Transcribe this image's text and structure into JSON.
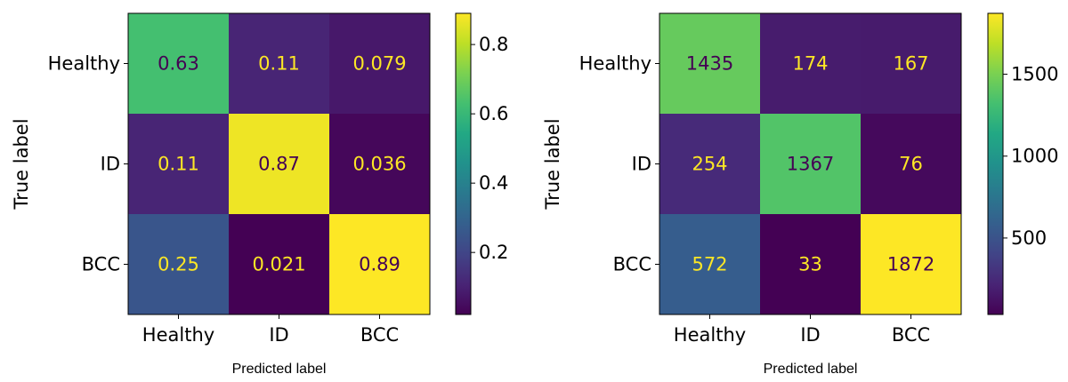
{
  "chart_data": [
    {
      "type": "heatmap",
      "row_labels": [
        "Healthy",
        "ID",
        "BCC"
      ],
      "col_labels": [
        "Healthy",
        "ID",
        "BCC"
      ],
      "values": [
        [
          0.63,
          0.11,
          0.079
        ],
        [
          0.11,
          0.87,
          0.036
        ],
        [
          0.25,
          0.021,
          0.89
        ]
      ],
      "cell_text": [
        [
          "0.63",
          "0.11",
          "0.079"
        ],
        [
          "0.11",
          "0.87",
          "0.036"
        ],
        [
          "0.25",
          "0.021",
          "0.89"
        ]
      ],
      "xlabel": "Predicted label",
      "ylabel": "True label",
      "colorbar": {
        "min": 0.021,
        "max": 0.89,
        "ticks": [
          0.2,
          0.4,
          0.6,
          0.8
        ],
        "tick_labels": [
          "0.2",
          "0.4",
          "0.6",
          "0.8"
        ]
      },
      "colormap": "viridis"
    },
    {
      "type": "heatmap",
      "row_labels": [
        "Healthy",
        "ID",
        "BCC"
      ],
      "col_labels": [
        "Healthy",
        "ID",
        "BCC"
      ],
      "values": [
        [
          1435,
          174,
          167
        ],
        [
          254,
          1367,
          76
        ],
        [
          572,
          33,
          1872
        ]
      ],
      "cell_text": [
        [
          "1435",
          "174",
          "167"
        ],
        [
          "254",
          "1367",
          "76"
        ],
        [
          "572",
          "33",
          "1872"
        ]
      ],
      "xlabel": "Predicted label",
      "ylabel": "True label",
      "colorbar": {
        "min": 33,
        "max": 1872,
        "ticks": [
          500,
          1000,
          1500
        ],
        "tick_labels": [
          "500",
          "1000",
          "1500"
        ]
      },
      "colormap": "viridis"
    }
  ],
  "colors": {
    "text_on_dark": "#fde725",
    "text_on_light": "#440154"
  }
}
